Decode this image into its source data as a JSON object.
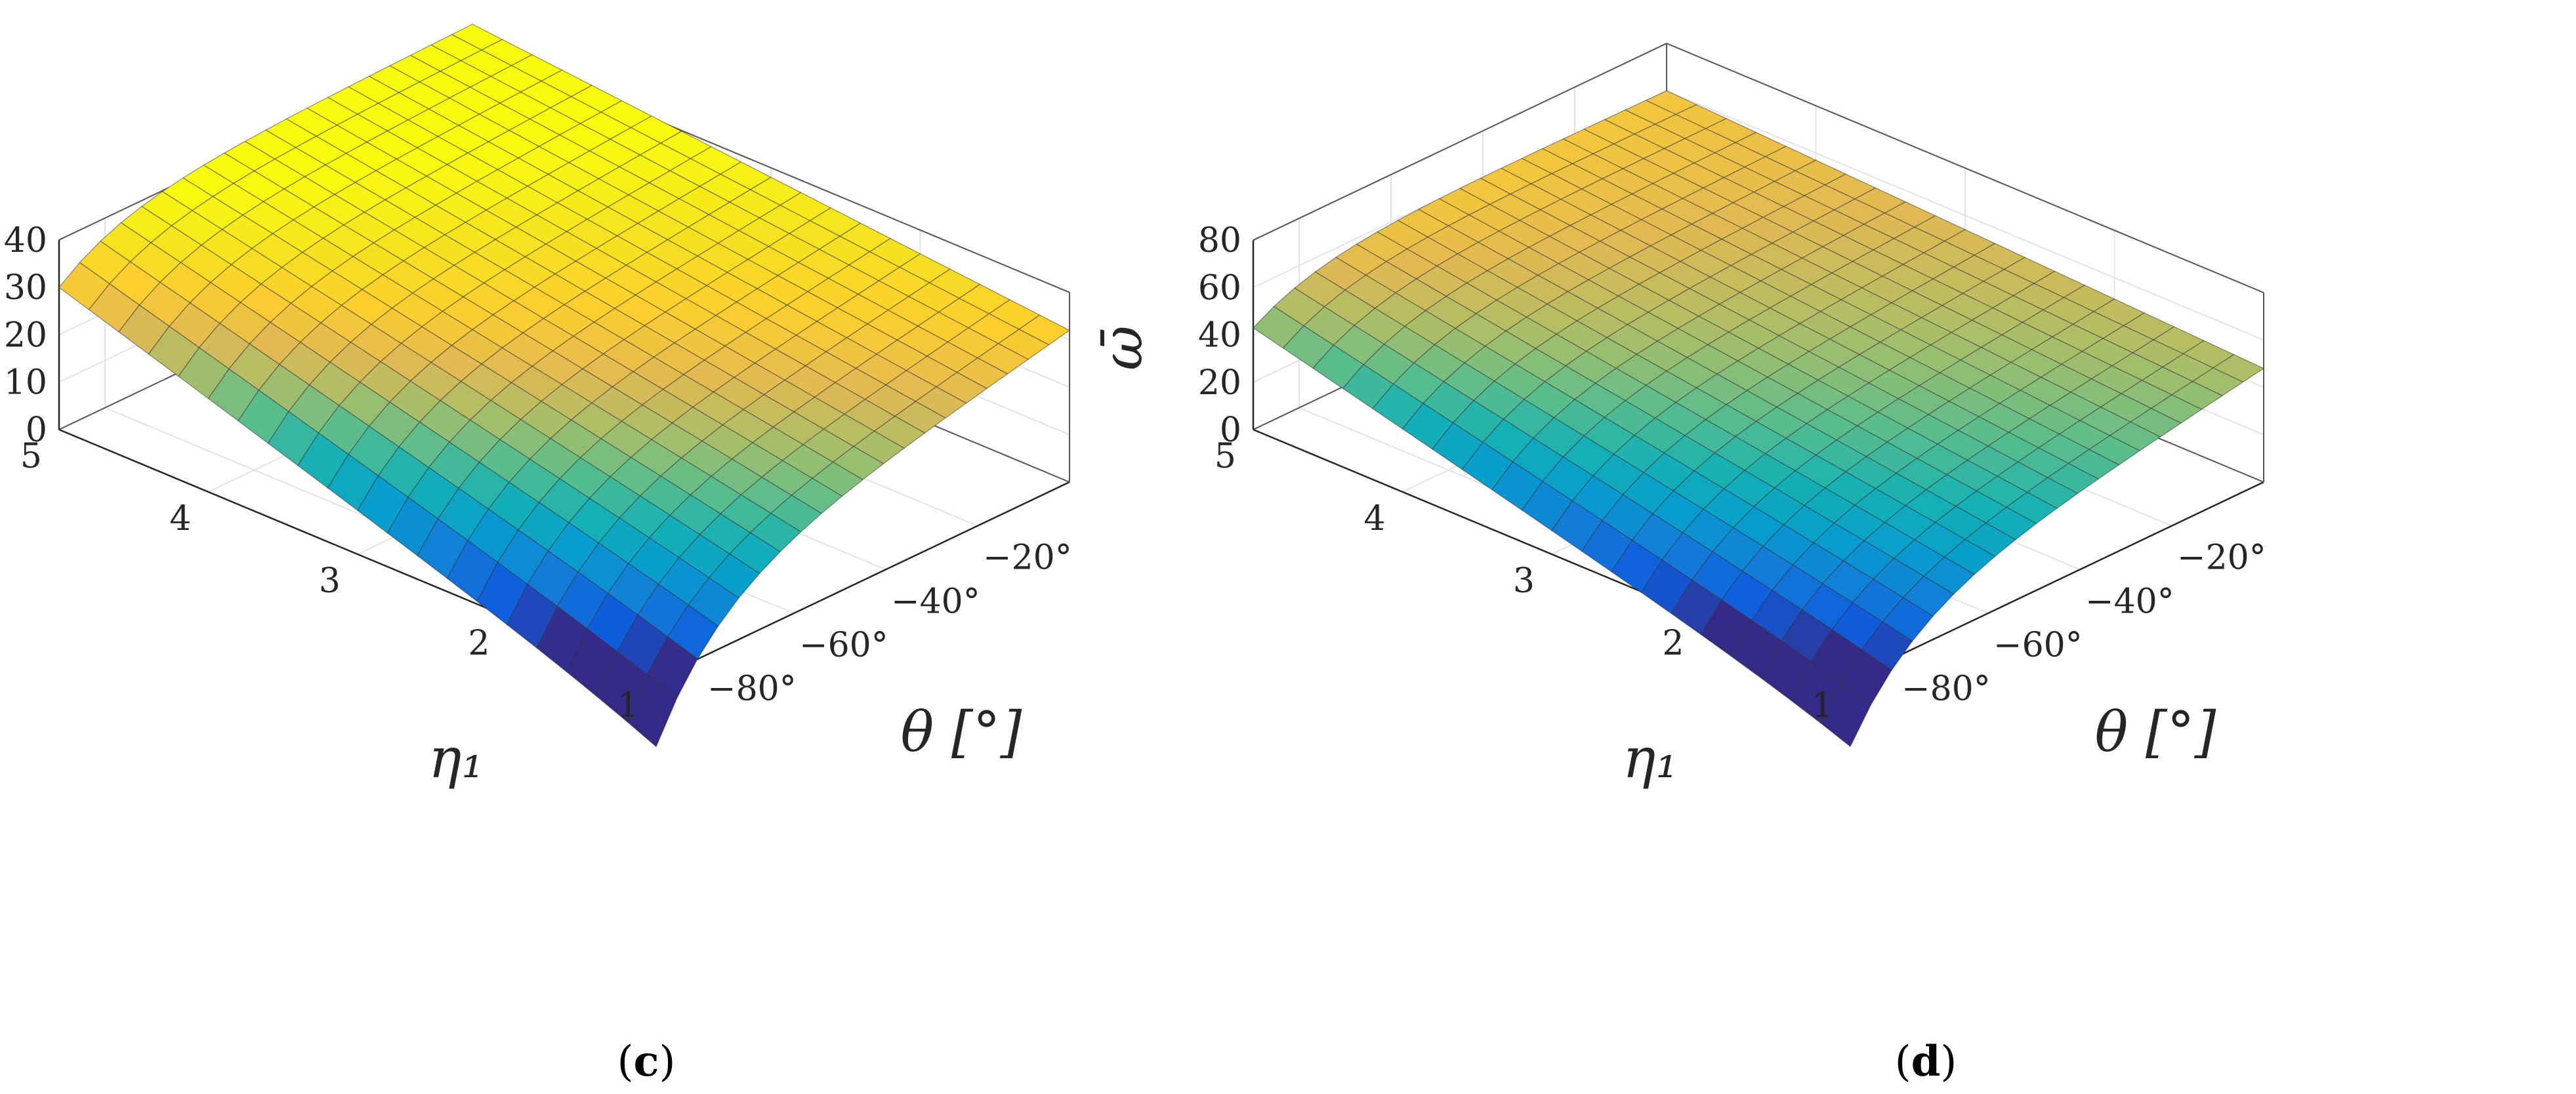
{
  "chart_data": [
    {
      "type": "surface",
      "panel_label": "(c)",
      "caption": {
        "open": "(",
        "letter": "c",
        "close": ")"
      },
      "xlabel": "θ [°]",
      "ylabel": "η₁",
      "zlabel": "ω̄",
      "theta_ticks": [
        "−80°",
        "−60°",
        "−40°",
        "−20°"
      ],
      "eta_ticks": [
        "1",
        "2",
        "3",
        "4",
        "5"
      ],
      "z_ticks": [
        "0",
        "10",
        "20",
        "30",
        "40"
      ],
      "theta_range": [
        -90,
        0
      ],
      "eta_range": [
        1,
        5
      ],
      "zlim": [
        0,
        40
      ],
      "grid": true,
      "colormap": "parula",
      "surface": {
        "theta": [
          -90,
          0
        ],
        "eta": [
          1,
          5
        ],
        "z_corners": {
          "theta_min_eta_min": -11,
          "theta_min_eta_max": 30,
          "theta_max_eta_min": 32,
          "theta_max_eta_max": 44
        }
      }
    },
    {
      "type": "surface",
      "panel_label": "(d)",
      "caption": {
        "open": "(",
        "letter": "d",
        "close": ")"
      },
      "xlabel": "θ [°]",
      "ylabel": "η₁",
      "zlabel": "ω̄",
      "theta_ticks": [
        "−80°",
        "−60°",
        "−40°",
        "−20°"
      ],
      "eta_ticks": [
        "1",
        "2",
        "3",
        "4",
        "5"
      ],
      "z_ticks": [
        "0",
        "20",
        "40",
        "60",
        "80"
      ],
      "theta_range": [
        -90,
        0
      ],
      "eta_range": [
        1,
        5
      ],
      "zlim": [
        0,
        80
      ],
      "grid": true,
      "colormap": "parula",
      "surface": {
        "theta": [
          -90,
          0
        ],
        "eta": [
          1,
          5
        ],
        "z_corners": {
          "theta_min_eta_min": -22,
          "theta_min_eta_max": 43,
          "theta_max_eta_min": 48,
          "theta_max_eta_max": 60
        }
      }
    }
  ]
}
